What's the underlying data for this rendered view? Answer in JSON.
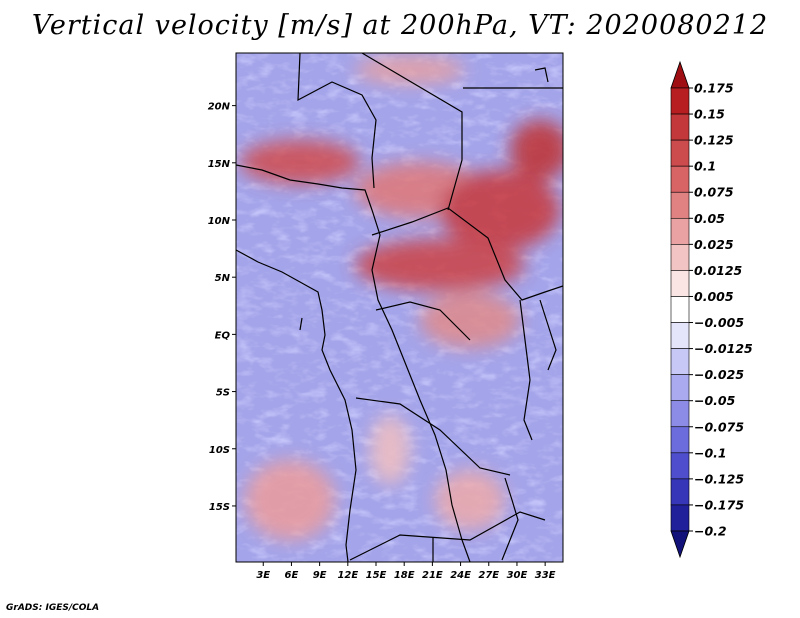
{
  "title": "Vertical velocity [m/s] at 200hPa, VT: 2020080212",
  "credit": "GrADS: IGES/COLA",
  "chart_data": {
    "type": "heatmap",
    "title": "Vertical velocity [m/s] at 200hPa, VT: 2020080212",
    "variable": "Vertical velocity",
    "units": "m/s",
    "level": "200hPa",
    "valid_time": "2020080212",
    "xlabel": "",
    "ylabel": "",
    "x_ticks": [
      "3E",
      "6E",
      "9E",
      "12E",
      "15E",
      "18E",
      "21E",
      "24E",
      "27E",
      "30E",
      "33E"
    ],
    "x_tick_values": [
      3,
      6,
      9,
      12,
      15,
      18,
      21,
      24,
      27,
      30,
      33
    ],
    "y_ticks": [
      "20N",
      "15N",
      "10N",
      "5N",
      "EQ",
      "5S",
      "10S",
      "15S"
    ],
    "y_tick_values": [
      20,
      15,
      10,
      5,
      0,
      -5,
      -10,
      -15
    ],
    "xlim": [
      0.1,
      34.9
    ],
    "ylim": [
      -19.9,
      24.6
    ],
    "colorbar": {
      "labels": [
        "0.175",
        "0.15",
        "0.125",
        "0.1",
        "0.075",
        "0.05",
        "0.025",
        "0.0125",
        "0.005",
        "−0.005",
        "−0.0125",
        "−0.025",
        "−0.05",
        "−0.075",
        "−0.1",
        "−0.125",
        "−0.175",
        "−0.2"
      ],
      "colors": [
        "#9e0e12",
        "#b61e22",
        "#c3383a",
        "#cc4b4c",
        "#d86466",
        "#e08282",
        "#eaa2a2",
        "#f2c4c4",
        "#fae4e4",
        "#ffffff",
        "#e4e4fa",
        "#c8c8f6",
        "#aaaaf0",
        "#8c8ce6",
        "#6c6cdc",
        "#4f4fcd",
        "#3636b8",
        "#20209a",
        "#12127a"
      ]
    }
  }
}
